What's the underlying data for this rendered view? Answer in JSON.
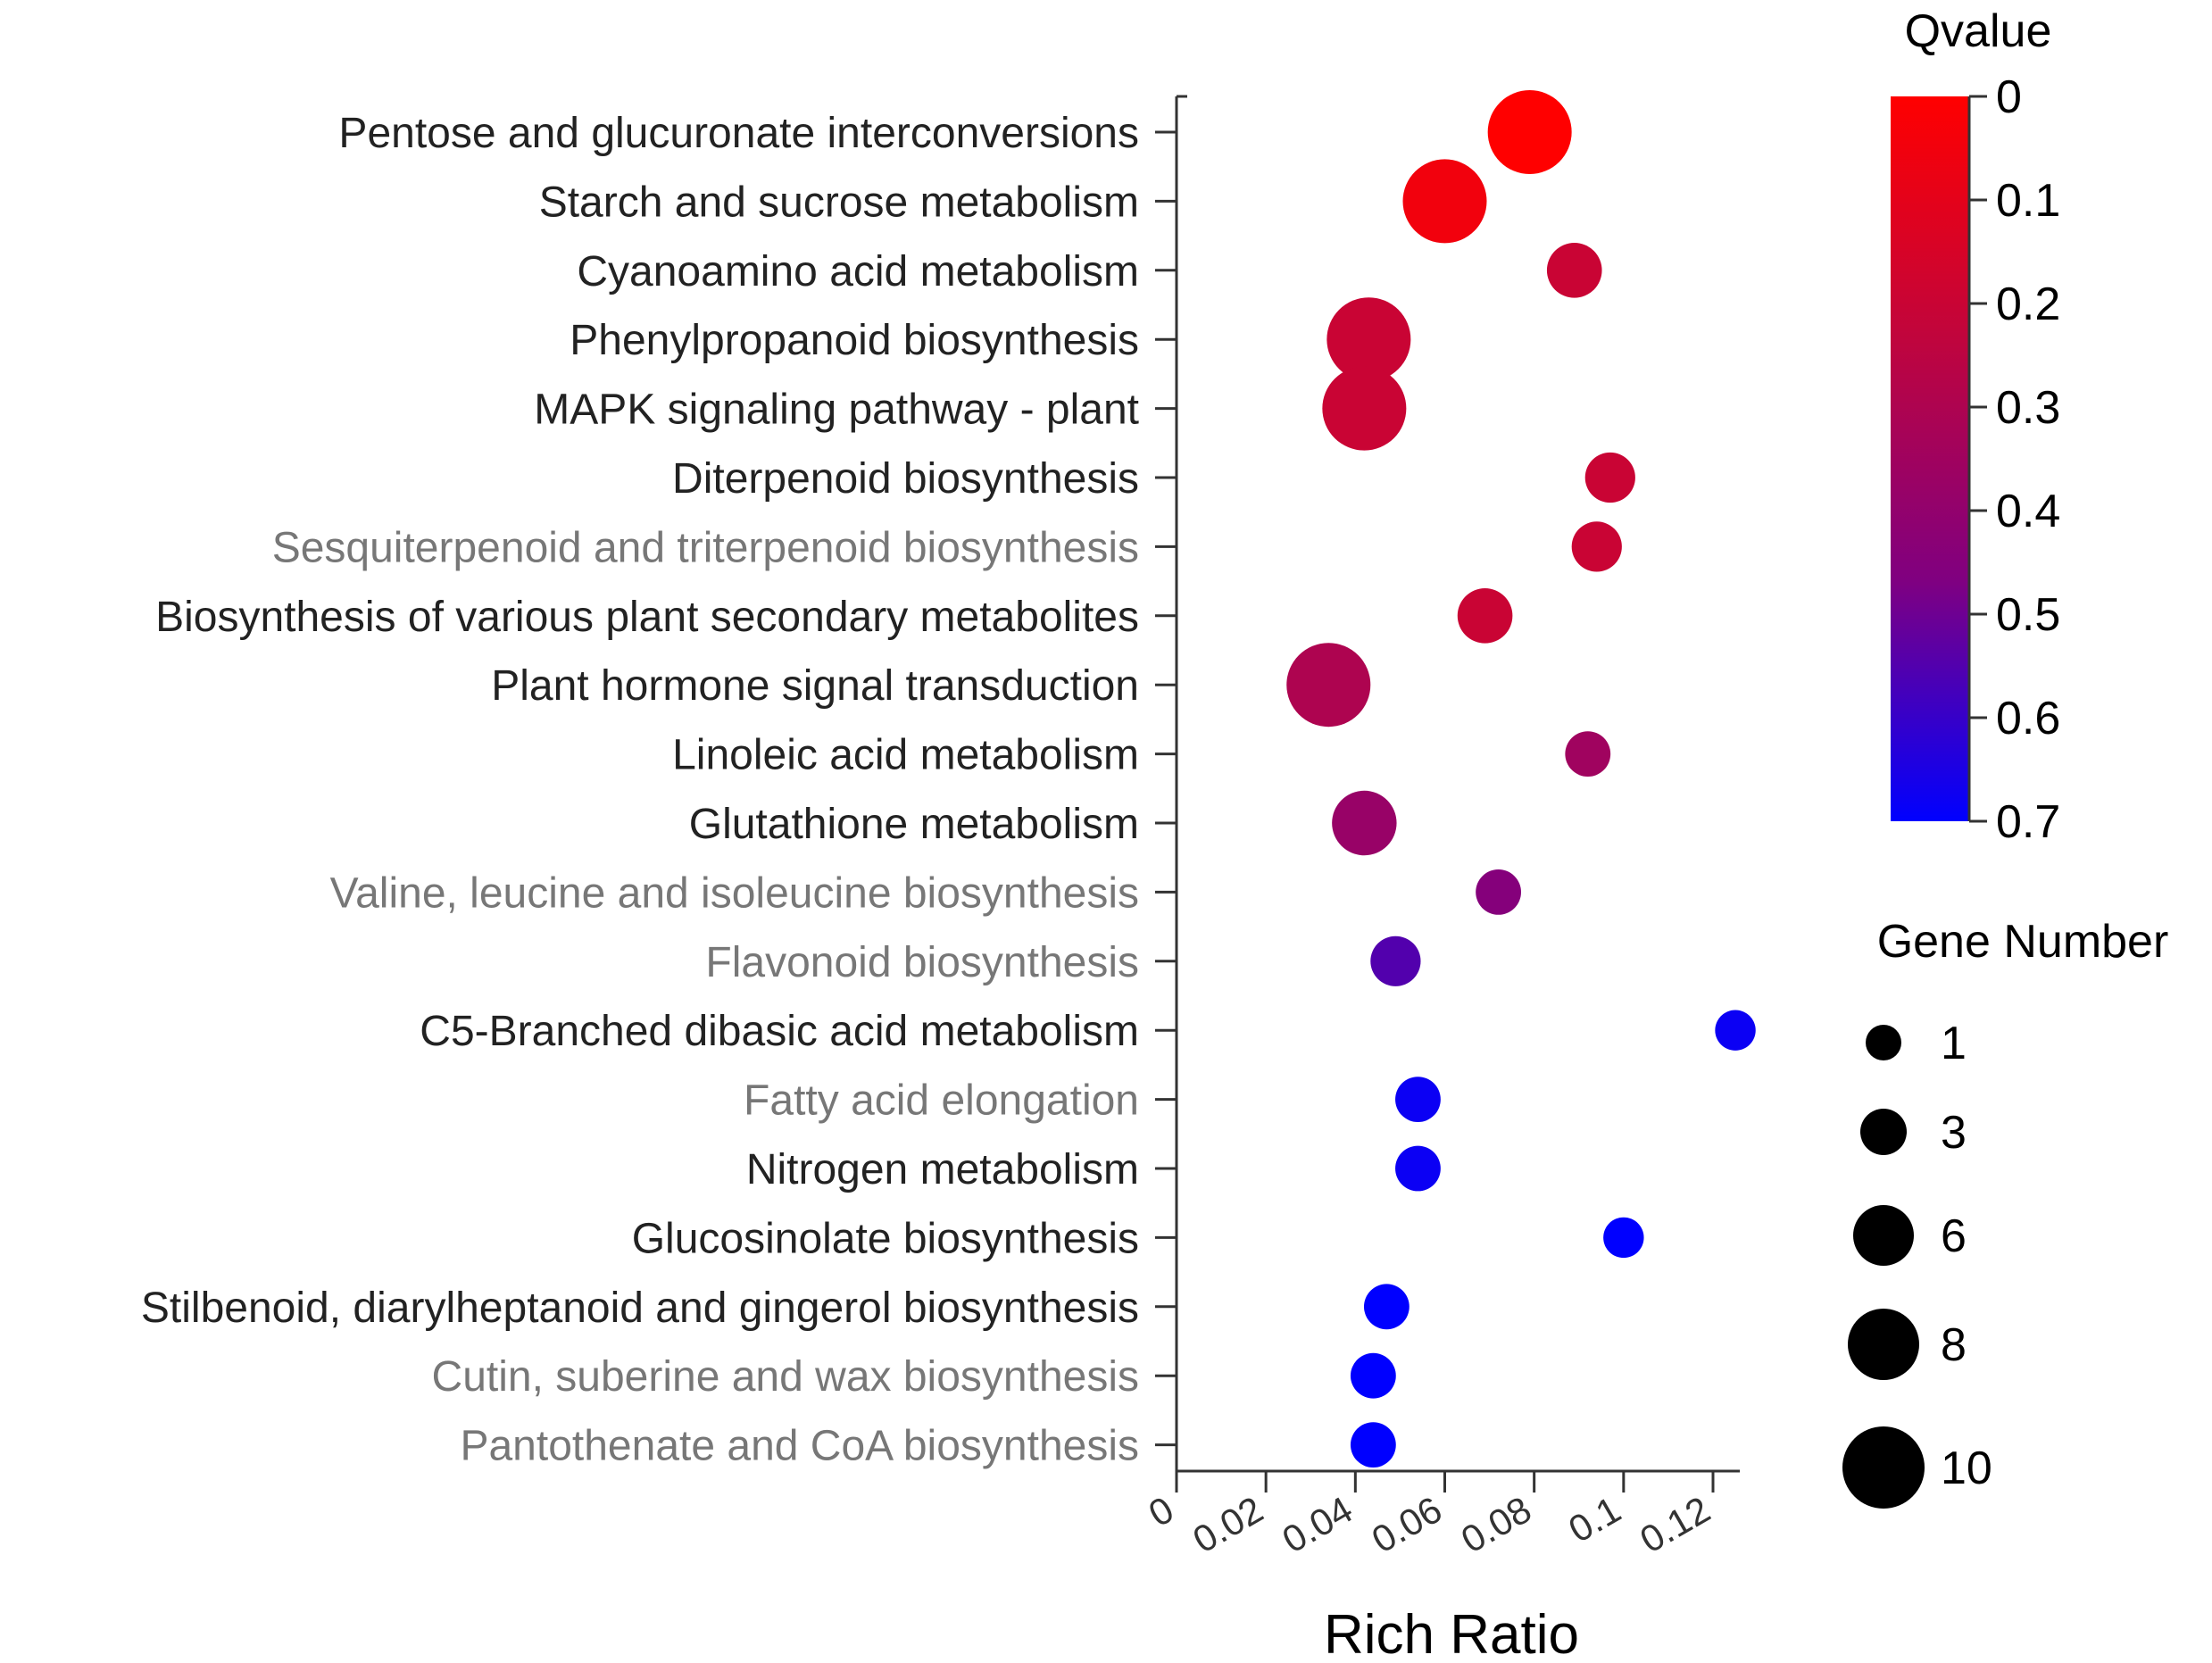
{
  "chart_data": {
    "type": "scatter",
    "xlabel": "Rich Ratio",
    "xlim": [
      0,
      0.126
    ],
    "x_ticks": [
      0,
      0.02,
      0.04,
      0.06,
      0.08,
      0.1,
      0.12
    ],
    "x_tick_labels": [
      "0",
      "0.02",
      "0.04",
      "0.06",
      "0.08",
      "0.1",
      "0.12"
    ],
    "categories": [
      {
        "name": "Pentose and glucuronate interconversions",
        "rich_ratio": 0.079,
        "qvalue": 0.0,
        "gene_number": 10,
        "label_color": "#222222"
      },
      {
        "name": "Starch and sucrose metabolism",
        "rich_ratio": 0.06,
        "qvalue": 0.05,
        "gene_number": 10,
        "label_color": "#222222"
      },
      {
        "name": "Cyanoamino acid metabolism",
        "rich_ratio": 0.089,
        "qvalue": 0.2,
        "gene_number": 4,
        "label_color": "#222222"
      },
      {
        "name": "Phenylpropanoid biosynthesis",
        "rich_ratio": 0.043,
        "qvalue": 0.2,
        "gene_number": 10,
        "label_color": "#222222"
      },
      {
        "name": "MAPK signaling pathway - plant",
        "rich_ratio": 0.042,
        "qvalue": 0.2,
        "gene_number": 10,
        "label_color": "#222222"
      },
      {
        "name": "Diterpenoid biosynthesis",
        "rich_ratio": 0.097,
        "qvalue": 0.2,
        "gene_number": 3,
        "label_color": "#222222"
      },
      {
        "name": "Sesquiterpenoid and triterpenoid biosynthesis",
        "rich_ratio": 0.094,
        "qvalue": 0.2,
        "gene_number": 3,
        "label_color": "#777777"
      },
      {
        "name": "Biosynthesis of various plant secondary metabolites",
        "rich_ratio": 0.069,
        "qvalue": 0.2,
        "gene_number": 4,
        "label_color": "#222222"
      },
      {
        "name": "Plant hormone signal transduction",
        "rich_ratio": 0.034,
        "qvalue": 0.3,
        "gene_number": 10,
        "label_color": "#222222"
      },
      {
        "name": "Linoleic acid metabolism",
        "rich_ratio": 0.092,
        "qvalue": 0.35,
        "gene_number": 2,
        "label_color": "#222222"
      },
      {
        "name": "Glutathione metabolism",
        "rich_ratio": 0.042,
        "qvalue": 0.38,
        "gene_number": 6,
        "label_color": "#222222"
      },
      {
        "name": "Valine, leucine and isoleucine biosynthesis",
        "rich_ratio": 0.072,
        "qvalue": 0.45,
        "gene_number": 2,
        "label_color": "#777777"
      },
      {
        "name": "Flavonoid biosynthesis",
        "rich_ratio": 0.049,
        "qvalue": 0.55,
        "gene_number": 3,
        "label_color": "#777777"
      },
      {
        "name": "C5-Branched dibasic acid metabolism",
        "rich_ratio": 0.125,
        "qvalue": 0.68,
        "gene_number": 1,
        "label_color": "#222222"
      },
      {
        "name": "Fatty acid elongation",
        "rich_ratio": 0.054,
        "qvalue": 0.68,
        "gene_number": 2,
        "label_color": "#777777"
      },
      {
        "name": "Nitrogen metabolism",
        "rich_ratio": 0.054,
        "qvalue": 0.68,
        "gene_number": 2,
        "label_color": "#222222"
      },
      {
        "name": "Glucosinolate biosynthesis",
        "rich_ratio": 0.1,
        "qvalue": 0.7,
        "gene_number": 1,
        "label_color": "#222222"
      },
      {
        "name": "Stilbenoid, diarylheptanoid and gingerol biosynthesis",
        "rich_ratio": 0.047,
        "qvalue": 0.7,
        "gene_number": 2,
        "label_color": "#222222"
      },
      {
        "name": "Cutin, suberine and wax biosynthesis",
        "rich_ratio": 0.044,
        "qvalue": 0.7,
        "gene_number": 2,
        "label_color": "#777777"
      },
      {
        "name": "Pantothenate and CoA biosynthesis",
        "rich_ratio": 0.044,
        "qvalue": 0.7,
        "gene_number": 2,
        "label_color": "#777777"
      }
    ],
    "color_legend": {
      "title": "Qvalue",
      "min": 0,
      "max": 0.7,
      "ticks": [
        "0",
        "0.1",
        "0.2",
        "0.3",
        "0.4",
        "0.5",
        "0.6",
        "0.7"
      ],
      "colors": [
        "#ff0000",
        "#c0053d",
        "#800080",
        "#0000ff"
      ]
    },
    "size_legend": {
      "title": "Gene Number",
      "values": [
        1,
        3,
        6,
        8,
        10
      ],
      "labels": [
        "1",
        "3",
        "6",
        "8",
        "10"
      ]
    }
  }
}
